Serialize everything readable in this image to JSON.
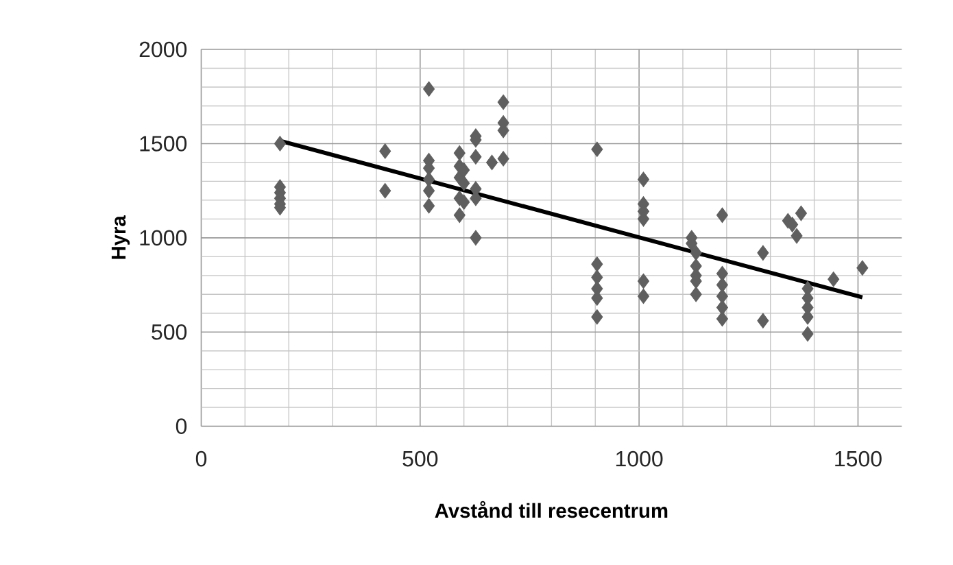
{
  "chart_data": {
    "type": "scatter",
    "xlabel": "Avstånd till resecentrum",
    "ylabel": "Hyra",
    "xlim": [
      0,
      1600
    ],
    "ylim": [
      0,
      2000
    ],
    "xticks": [
      0,
      500,
      1000,
      1500
    ],
    "yticks": [
      0,
      500,
      1000,
      1500,
      2000
    ],
    "grid": true,
    "series": [
      {
        "marker": "diamond",
        "color": "#5f5f5f",
        "x": [
          180,
          180,
          180,
          180,
          180,
          180,
          420,
          420,
          520,
          520,
          520,
          520,
          520,
          520,
          590,
          590,
          590,
          590,
          590,
          600,
          600,
          600,
          627,
          627,
          627,
          627,
          627,
          627,
          664,
          690,
          690,
          690,
          690,
          904,
          904,
          904,
          904,
          904,
          904,
          1010,
          1010,
          1010,
          1010,
          1010,
          1010,
          1120,
          1120,
          1130,
          1130,
          1130,
          1130,
          1130,
          1190,
          1190,
          1190,
          1190,
          1190,
          1190,
          1283,
          1283,
          1340,
          1350,
          1360,
          1370,
          1385,
          1385,
          1385,
          1385,
          1385,
          1444,
          1510
        ],
        "values": [
          1500,
          1270,
          1240,
          1210,
          1180,
          1160,
          1460,
          1250,
          1790,
          1410,
          1370,
          1310,
          1250,
          1170,
          1450,
          1380,
          1320,
          1210,
          1120,
          1360,
          1290,
          1190,
          1000,
          1540,
          1520,
          1430,
          1260,
          1210,
          1400,
          1720,
          1610,
          1570,
          1420,
          1470,
          860,
          790,
          730,
          680,
          580,
          1310,
          1180,
          1140,
          1100,
          770,
          690,
          1000,
          970,
          920,
          850,
          800,
          770,
          700,
          1120,
          810,
          750,
          690,
          630,
          570,
          920,
          560,
          1090,
          1070,
          1010,
          1130,
          730,
          680,
          630,
          580,
          490,
          780,
          840
        ]
      },
      {
        "type": "line",
        "marker": "none",
        "color": "#000000",
        "x": [
          180,
          1510
        ],
        "values": [
          1515,
          684
        ]
      }
    ]
  }
}
